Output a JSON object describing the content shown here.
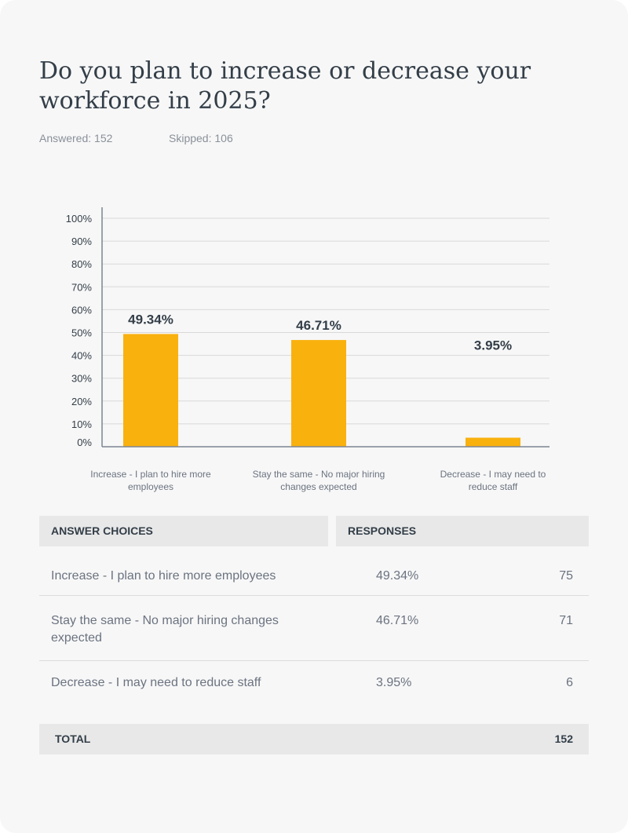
{
  "question": "Do you plan to increase or decrease your workforce in 2025?",
  "answered_label": "Answered: 152",
  "skipped_label": "Skipped: 106",
  "colors": {
    "bar": "#f9b10e",
    "grid": "#d9d9d9",
    "axis": "#7c8593"
  },
  "chart_data": {
    "type": "bar",
    "categories": [
      "Increase - I plan to hire more employees",
      "Stay the same - No major hiring changes expected",
      "Decrease - I may need to reduce staff"
    ],
    "values": [
      49.34,
      46.71,
      3.95
    ],
    "data_labels": [
      "49.34%",
      "46.71%",
      "3.95%"
    ],
    "yticks": [
      "0%",
      "10%",
      "20%",
      "30%",
      "40%",
      "50%",
      "60%",
      "70%",
      "80%",
      "90%",
      "100%"
    ],
    "ylim": [
      0,
      100
    ],
    "grid": true
  },
  "table": {
    "headers": [
      "ANSWER CHOICES",
      "RESPONSES"
    ],
    "rows": [
      {
        "choice": "Increase - I plan to hire more employees",
        "percent": "49.34%",
        "count": "75"
      },
      {
        "choice": "Stay the same - No major hiring changes expected",
        "percent": "46.71%",
        "count": "71"
      },
      {
        "choice": "Decrease - I may need to reduce staff",
        "percent": "3.95%",
        "count": "6"
      }
    ],
    "total_label": "TOTAL",
    "total_value": "152"
  }
}
